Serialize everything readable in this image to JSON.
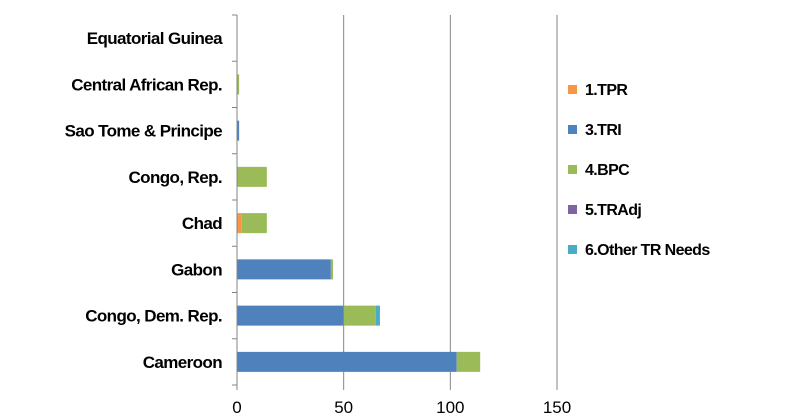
{
  "chart_data": {
    "type": "bar",
    "orientation": "horizontal",
    "stacked": true,
    "title": "",
    "xlabel": "",
    "ylabel": "",
    "xlim": [
      0,
      150
    ],
    "xticks": [
      "0",
      "50",
      "100",
      "150"
    ],
    "grid": "vertical",
    "legend_position": "right",
    "categories": [
      "Equatorial Guinea",
      "Central African Rep.",
      "Sao Tome & Principe",
      "Congo, Rep.",
      "Chad",
      "Gabon",
      "Congo, Dem. Rep.",
      "Cameroon"
    ],
    "series": [
      {
        "name": "1.TPR",
        "color": "#f79646",
        "values": [
          0,
          0,
          0,
          0,
          2,
          0,
          0,
          0
        ]
      },
      {
        "name": "3.TRI",
        "color": "#4f81bd",
        "values": [
          0,
          0,
          1,
          0,
          0,
          44,
          50,
          103
        ]
      },
      {
        "name": "4.BPC",
        "color": "#9bbb59",
        "values": [
          0,
          1,
          0,
          14,
          12,
          1,
          15,
          11
        ]
      },
      {
        "name": "5.TRAdj",
        "color": "#8064a2",
        "values": [
          0,
          0,
          0,
          0,
          0,
          0,
          0,
          0
        ]
      },
      {
        "name": "6.Other TR Needs",
        "color": "#4bacc6",
        "values": [
          0,
          0,
          0,
          0,
          0,
          0,
          2,
          0
        ]
      }
    ]
  }
}
